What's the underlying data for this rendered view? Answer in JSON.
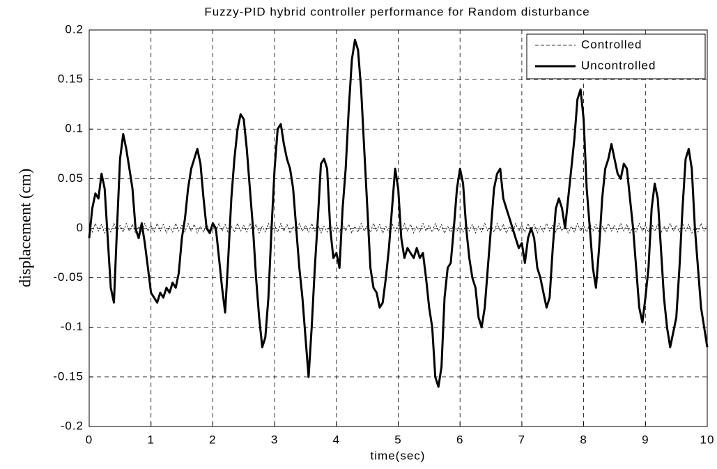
{
  "chart_data": {
    "type": "line",
    "title": "Fuzzy-PID hybrid controller performance for Random disturbance",
    "xlabel": "time(sec)",
    "ylabel": "displacement (cm)",
    "xlim": [
      0,
      10
    ],
    "xticks": [
      0,
      1,
      2,
      3,
      4,
      5,
      6,
      7,
      8,
      9,
      10
    ],
    "ylim": [
      -0.2,
      0.2
    ],
    "yticks": [
      -0.2,
      -0.15,
      -0.1,
      -0.05,
      0,
      0.05,
      0.1,
      0.15,
      0.2
    ],
    "grid": true,
    "legend": "upper right",
    "x": [
      0,
      0.05,
      0.1,
      0.15,
      0.2,
      0.25,
      0.3,
      0.35,
      0.4,
      0.45,
      0.5,
      0.55,
      0.6,
      0.65,
      0.7,
      0.75,
      0.8,
      0.85,
      0.9,
      0.95,
      1,
      1.05,
      1.1,
      1.15,
      1.2,
      1.25,
      1.3,
      1.35,
      1.4,
      1.45,
      1.5,
      1.55,
      1.6,
      1.65,
      1.7,
      1.75,
      1.8,
      1.85,
      1.9,
      1.95,
      2,
      2.05,
      2.1,
      2.15,
      2.2,
      2.25,
      2.3,
      2.35,
      2.4,
      2.45,
      2.5,
      2.55,
      2.6,
      2.65,
      2.7,
      2.75,
      2.8,
      2.85,
      2.9,
      2.95,
      3,
      3.05,
      3.1,
      3.15,
      3.2,
      3.25,
      3.3,
      3.35,
      3.4,
      3.45,
      3.5,
      3.55,
      3.6,
      3.65,
      3.7,
      3.75,
      3.8,
      3.85,
      3.9,
      3.95,
      4,
      4.05,
      4.1,
      4.15,
      4.2,
      4.25,
      4.3,
      4.35,
      4.4,
      4.45,
      4.5,
      4.55,
      4.6,
      4.65,
      4.7,
      4.75,
      4.8,
      4.85,
      4.9,
      4.95,
      5,
      5.05,
      5.1,
      5.15,
      5.2,
      5.25,
      5.3,
      5.35,
      5.4,
      5.45,
      5.5,
      5.55,
      5.6,
      5.65,
      5.7,
      5.75,
      5.8,
      5.85,
      5.9,
      5.95,
      6,
      6.05,
      6.1,
      6.15,
      6.2,
      6.25,
      6.3,
      6.35,
      6.4,
      6.45,
      6.5,
      6.55,
      6.6,
      6.65,
      6.7,
      6.75,
      6.8,
      6.85,
      6.9,
      6.95,
      7,
      7.05,
      7.1,
      7.15,
      7.2,
      7.25,
      7.3,
      7.35,
      7.4,
      7.45,
      7.5,
      7.55,
      7.6,
      7.65,
      7.7,
      7.75,
      7.8,
      7.85,
      7.9,
      7.95,
      8,
      8.05,
      8.1,
      8.15,
      8.2,
      8.25,
      8.3,
      8.35,
      8.4,
      8.45,
      8.5,
      8.55,
      8.6,
      8.65,
      8.7,
      8.75,
      8.8,
      8.85,
      8.9,
      8.95,
      9,
      9.05,
      9.1,
      9.15,
      9.2,
      9.25,
      9.3,
      9.35,
      9.4,
      9.45,
      9.5,
      9.55,
      9.6,
      9.65,
      9.7,
      9.75,
      9.8,
      9.85,
      9.9,
      9.95,
      10
    ],
    "series": [
      {
        "name": "Controlled",
        "color": "#000000",
        "style": "dashed",
        "values": [
          0.003,
          -0.004,
          0.005,
          -0.003,
          0.004,
          -0.005,
          0.002,
          -0.004,
          0.005,
          -0.003,
          0.003,
          -0.004,
          0.005,
          -0.003,
          0.004,
          -0.005,
          0.002,
          -0.004,
          0.005,
          -0.003,
          0.003,
          -0.004,
          0.005,
          -0.003,
          0.004,
          -0.005,
          0.002,
          -0.004,
          0.005,
          -0.003,
          0.003,
          -0.004,
          0.005,
          -0.003,
          0.004,
          -0.005,
          0.002,
          -0.004,
          0.005,
          -0.003,
          0.003,
          -0.004,
          0.005,
          -0.003,
          0.004,
          -0.005,
          0.002,
          -0.004,
          0.005,
          -0.003,
          0.003,
          -0.004,
          0.005,
          -0.003,
          0.004,
          -0.005,
          0.002,
          -0.004,
          0.005,
          -0.003,
          0.003,
          -0.004,
          0.005,
          -0.003,
          0.004,
          -0.005,
          0.002,
          -0.004,
          0.005,
          -0.003,
          0.003,
          -0.004,
          0.005,
          -0.003,
          0.004,
          -0.005,
          0.002,
          -0.004,
          0.005,
          -0.003,
          0.003,
          -0.004,
          0.005,
          -0.003,
          0.004,
          -0.005,
          0.002,
          -0.004,
          0.005,
          -0.003,
          0.003,
          -0.004,
          0.005,
          -0.003,
          0.004,
          -0.005,
          0.002,
          -0.004,
          0.005,
          -0.003,
          0.003,
          -0.004,
          0.005,
          -0.003,
          0.004,
          -0.005,
          0.002,
          -0.004,
          0.005,
          -0.003,
          0.003,
          -0.004,
          0.005,
          -0.003,
          0.004,
          -0.005,
          0.002,
          -0.004,
          0.005,
          -0.003,
          0.003,
          -0.004,
          0.005,
          -0.003,
          0.004,
          -0.005,
          0.002,
          -0.004,
          0.005,
          -0.003,
          0.003,
          -0.004,
          0.005,
          -0.003,
          0.004,
          -0.005,
          0.002,
          -0.004,
          0.005,
          -0.003,
          0.003,
          -0.004,
          0.005,
          -0.003,
          0.004,
          -0.005,
          0.002,
          -0.004,
          0.005,
          -0.003,
          0.003,
          -0.004,
          0.005,
          -0.003,
          0.004,
          -0.005,
          0.002,
          -0.004,
          0.005,
          -0.003,
          0.003,
          -0.004,
          0.005,
          -0.003,
          0.004,
          -0.005,
          0.002,
          -0.004,
          0.005,
          -0.003,
          0.003,
          -0.004,
          0.005,
          -0.003,
          0.004,
          -0.005,
          0.002,
          -0.004,
          0.005,
          -0.003,
          0.003,
          -0.004,
          0.005,
          -0.003,
          0.004,
          -0.005,
          0.002,
          -0.004,
          0.005,
          -0.003,
          0.003,
          -0.004,
          0.005,
          -0.003,
          0.004,
          -0.005,
          0.002,
          -0.004,
          0.005,
          -0.003,
          0.003
        ]
      },
      {
        "name": "Uncontrolled",
        "color": "#000000",
        "style": "solid",
        "values": [
          -0.01,
          0.02,
          0.035,
          0.03,
          0.055,
          0.04,
          -0.01,
          -0.06,
          -0.075,
          0.0,
          0.07,
          0.095,
          0.08,
          0.06,
          0.04,
          0.0,
          -0.01,
          0.005,
          -0.015,
          -0.04,
          -0.065,
          -0.07,
          -0.075,
          -0.065,
          -0.07,
          -0.06,
          -0.065,
          -0.055,
          -0.06,
          -0.045,
          -0.01,
          0.01,
          0.04,
          0.06,
          0.07,
          0.08,
          0.065,
          0.03,
          0.0,
          -0.005,
          0.005,
          0.0,
          -0.03,
          -0.06,
          -0.085,
          -0.03,
          0.03,
          0.07,
          0.1,
          0.115,
          0.11,
          0.08,
          0.04,
          0.0,
          -0.05,
          -0.09,
          -0.12,
          -0.11,
          -0.07,
          0.0,
          0.06,
          0.1,
          0.105,
          0.085,
          0.07,
          0.06,
          0.04,
          0.0,
          -0.04,
          -0.07,
          -0.11,
          -0.15,
          -0.1,
          -0.04,
          0.01,
          0.065,
          0.07,
          0.06,
          0.0,
          -0.03,
          -0.025,
          -0.04,
          0.02,
          0.06,
          0.12,
          0.17,
          0.19,
          0.18,
          0.14,
          0.08,
          0.02,
          -0.04,
          -0.06,
          -0.065,
          -0.08,
          -0.075,
          -0.05,
          -0.02,
          0.02,
          0.06,
          0.04,
          -0.01,
          -0.03,
          -0.02,
          -0.025,
          -0.03,
          -0.02,
          -0.03,
          -0.025,
          -0.05,
          -0.08,
          -0.1,
          -0.15,
          -0.16,
          -0.14,
          -0.07,
          -0.04,
          -0.035,
          0.0,
          0.04,
          0.06,
          0.045,
          0.0,
          -0.03,
          -0.05,
          -0.06,
          -0.09,
          -0.1,
          -0.08,
          -0.04,
          0.0,
          0.04,
          0.055,
          0.06,
          0.03,
          0.02,
          0.01,
          0.0,
          -0.01,
          -0.02,
          -0.015,
          -0.035,
          -0.01,
          0.0,
          -0.01,
          -0.04,
          -0.05,
          -0.065,
          -0.08,
          -0.07,
          -0.02,
          0.02,
          0.03,
          0.02,
          0.0,
          0.03,
          0.06,
          0.09,
          0.13,
          0.14,
          0.11,
          0.04,
          0.0,
          -0.04,
          -0.06,
          -0.02,
          0.03,
          0.06,
          0.07,
          0.085,
          0.07,
          0.055,
          0.05,
          0.065,
          0.06,
          0.03,
          0.0,
          -0.04,
          -0.08,
          -0.095,
          -0.07,
          -0.04,
          0.02,
          0.045,
          0.03,
          -0.02,
          -0.07,
          -0.1,
          -0.12,
          -0.105,
          -0.09,
          -0.04,
          0.02,
          0.07,
          0.08,
          0.06,
          0.0,
          -0.04,
          -0.08,
          -0.1,
          -0.12
        ]
      }
    ]
  }
}
